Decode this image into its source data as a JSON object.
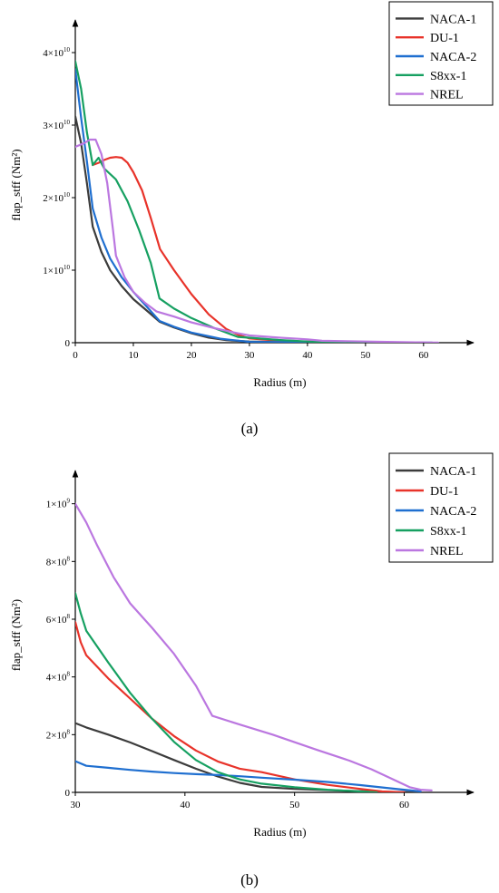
{
  "colors": {
    "NACA-1": "#3c3c3c",
    "DU-1": "#e8332a",
    "NACA-2": "#1f6fd0",
    "S8xx-1": "#16a061",
    "NREL": "#bb77e0"
  },
  "chart_data": [
    {
      "panel": "a",
      "caption": "(a)",
      "type": "line",
      "xlabel": "Radius (m)",
      "ylabel": "flap_stff (Nm²)",
      "xlim": [
        0,
        68
      ],
      "ylim": [
        0,
        43500000000.0
      ],
      "xticks": [
        0,
        10,
        20,
        30,
        40,
        50,
        60
      ],
      "yticks": [
        {
          "value": 0,
          "mant": "0",
          "exp": ""
        },
        {
          "value": 10000000000.0,
          "mant": "1×10",
          "exp": "10"
        },
        {
          "value": 20000000000.0,
          "mant": "2×10",
          "exp": "10"
        },
        {
          "value": 30000000000.0,
          "mant": "3×10",
          "exp": "10"
        },
        {
          "value": 40000000000.0,
          "mant": "4×10",
          "exp": "10"
        }
      ],
      "legend_position": "top-right",
      "series": [
        {
          "name": "NACA-1",
          "points": [
            [
              0,
              31200000000.0
            ],
            [
              1,
              27500000000.0
            ],
            [
              2,
              22000000000.0
            ],
            [
              3,
              16000000000.0
            ],
            [
              4.5,
              12500000000.0
            ],
            [
              6,
              10000000000.0
            ],
            [
              8,
              7800000000.0
            ],
            [
              10,
              6000000000.0
            ],
            [
              12.5,
              4300000000.0
            ],
            [
              14.5,
              2900000000.0
            ],
            [
              17,
              2100000000.0
            ],
            [
              20,
              1300000000.0
            ],
            [
              23,
              700000000.0
            ],
            [
              26,
              350000000.0
            ],
            [
              30,
              160000000.0
            ],
            [
              40,
              23000000.0
            ],
            [
              50,
              5000000.0
            ],
            [
              61.5,
              0
            ]
          ]
        },
        {
          "name": "DU-1",
          "points": [
            [
              3,
              24500000000.0
            ],
            [
              4,
              24800000000.0
            ],
            [
              5,
              25200000000.0
            ],
            [
              6,
              25500000000.0
            ],
            [
              7,
              25600000000.0
            ],
            [
              8,
              25500000000.0
            ],
            [
              9,
              24800000000.0
            ],
            [
              10,
              23500000000.0
            ],
            [
              11.5,
              21000000000.0
            ],
            [
              13,
              17200000000.0
            ],
            [
              14.6,
              12900000000.0
            ],
            [
              17,
              10000000000.0
            ],
            [
              20,
              6700000000.0
            ],
            [
              23,
              3900000000.0
            ],
            [
              26,
              1900000000.0
            ],
            [
              28,
              1100000000.0
            ],
            [
              30,
              590000000.0
            ],
            [
              35,
              270000000.0
            ],
            [
              40,
              150000000.0
            ],
            [
              45,
              110000000.0
            ],
            [
              50,
              50000000.0
            ],
            [
              55,
              15000000.0
            ],
            [
              60,
              0
            ]
          ]
        },
        {
          "name": "NACA-2",
          "points": [
            [
              0,
              37700000000.0
            ],
            [
              1,
              31000000000.0
            ],
            [
              2,
              25000000000.0
            ],
            [
              3,
              18500000000.0
            ],
            [
              4.5,
              14500000000.0
            ],
            [
              6,
              11600000000.0
            ],
            [
              8,
              9000000000.0
            ],
            [
              10,
              7000000000.0
            ],
            [
              12.5,
              4800000000.0
            ],
            [
              14.5,
              3000000000.0
            ],
            [
              17,
              2200000000.0
            ],
            [
              20,
              1400000000.0
            ],
            [
              25,
              550000000.0
            ],
            [
              30,
              110000000.0
            ],
            [
              40,
              65000000.0
            ],
            [
              50,
              45000000.0
            ],
            [
              61.5,
              0
            ]
          ]
        },
        {
          "name": "S8xx-1",
          "points": [
            [
              0,
              38800000000.0
            ],
            [
              1,
              35000000000.0
            ],
            [
              2,
              29000000000.0
            ],
            [
              3,
              24500000000.0
            ],
            [
              4,
              25500000000.0
            ],
            [
              5,
              24000000000.0
            ],
            [
              7,
              22500000000.0
            ],
            [
              9,
              19500000000.0
            ],
            [
              11,
              15500000000.0
            ],
            [
              13,
              11000000000.0
            ],
            [
              14.5,
              6100000000.0
            ],
            [
              17,
              4700000000.0
            ],
            [
              20,
              3400000000.0
            ],
            [
              24,
              2000000000.0
            ],
            [
              28,
              800000000.0
            ],
            [
              30,
              690000000.0
            ],
            [
              35,
              380000000.0
            ],
            [
              40,
              160000000.0
            ],
            [
              45,
              60000000.0
            ],
            [
              50,
              20000000.0
            ],
            [
              57,
              0
            ]
          ]
        },
        {
          "name": "NREL",
          "points": [
            [
              0,
              27000000000.0
            ],
            [
              1.5,
              27500000000.0
            ],
            [
              2.5,
              28000000000.0
            ],
            [
              3.5,
              28000000000.0
            ],
            [
              4.5,
              26000000000.0
            ],
            [
              5.5,
              22000000000.0
            ],
            [
              6.5,
              15500000000.0
            ],
            [
              7,
              12000000000.0
            ],
            [
              8.5,
              9000000000.0
            ],
            [
              10,
              7000000000.0
            ],
            [
              12,
              5500000000.0
            ],
            [
              14,
              4300000000.0
            ],
            [
              17,
              3600000000.0
            ],
            [
              20,
              2800000000.0
            ],
            [
              24,
              2000000000.0
            ],
            [
              28,
              1300000000.0
            ],
            [
              30,
              1000000000.0
            ],
            [
              35,
              700000000.0
            ],
            [
              40,
              460000000.0
            ],
            [
              42.5,
              265000000.0
            ],
            [
              50,
              160000000.0
            ],
            [
              55,
              105000000.0
            ],
            [
              61,
              15000000.0
            ],
            [
              62.5,
              8000000.0
            ]
          ]
        }
      ]
    },
    {
      "panel": "b",
      "caption": "(b)",
      "type": "line",
      "xlabel": "Radius (m)",
      "ylabel": "flap_stff (Nm²)",
      "xlim": [
        30,
        66
      ],
      "ylim": [
        0,
        1090000000.0
      ],
      "xticks": [
        30,
        40,
        50,
        60
      ],
      "yticks": [
        {
          "value": 0,
          "mant": "0",
          "exp": ""
        },
        {
          "value": 200000000.0,
          "mant": "2×10",
          "exp": "8"
        },
        {
          "value": 400000000.0,
          "mant": "4×10",
          "exp": "8"
        },
        {
          "value": 600000000.0,
          "mant": "6×10",
          "exp": "8"
        },
        {
          "value": 800000000.0,
          "mant": "8×10",
          "exp": "8"
        },
        {
          "value": 1000000000.0,
          "mant": "1×10",
          "exp": "9"
        }
      ],
      "legend_position": "top-right",
      "series": [
        {
          "name": "NACA-1",
          "points": [
            [
              30,
              240000000.0
            ],
            [
              31,
              225000000.0
            ],
            [
              33,
              200000000.0
            ],
            [
              35,
              173000000.0
            ],
            [
              37,
              143000000.0
            ],
            [
              39,
              112000000.0
            ],
            [
              41,
              82000000.0
            ],
            [
              43,
              55000000.0
            ],
            [
              45,
              33000000.0
            ],
            [
              47,
              19000000.0
            ],
            [
              50,
              12000000.0
            ],
            [
              55,
              5000000.0
            ],
            [
              58,
              2000000.0
            ],
            [
              61.5,
              0
            ]
          ]
        },
        {
          "name": "DU-1",
          "points": [
            [
              30,
              590000000.0
            ],
            [
              30.5,
              520000000.0
            ],
            [
              31,
              475000000.0
            ],
            [
              33,
              395000000.0
            ],
            [
              35,
              325000000.0
            ],
            [
              37,
              255000000.0
            ],
            [
              39,
              195000000.0
            ],
            [
              41,
              145000000.0
            ],
            [
              43,
              107000000.0
            ],
            [
              45,
              82000000.0
            ],
            [
              47,
              70000000.0
            ],
            [
              50,
              45000000.0
            ],
            [
              53,
              26000000.0
            ],
            [
              56,
              12000000.0
            ],
            [
              58,
              3000000.0
            ],
            [
              60,
              0
            ]
          ]
        },
        {
          "name": "NACA-2",
          "points": [
            [
              30,
              108000000.0
            ],
            [
              31,
              92000000.0
            ],
            [
              33,
              85000000.0
            ],
            [
              35,
              78000000.0
            ],
            [
              37,
              72000000.0
            ],
            [
              39,
              67000000.0
            ],
            [
              41,
              63000000.0
            ],
            [
              43,
              60000000.0
            ],
            [
              45,
              56000000.0
            ],
            [
              47,
              51000000.0
            ],
            [
              50,
              44000000.0
            ],
            [
              53,
              36000000.0
            ],
            [
              56,
              25000000.0
            ],
            [
              59,
              13000000.0
            ],
            [
              61.5,
              3000000.0
            ]
          ]
        },
        {
          "name": "S8xx-1",
          "points": [
            [
              30,
              690000000.0
            ],
            [
              30.5,
              620000000.0
            ],
            [
              31,
              560000000.0
            ],
            [
              33,
              450000000.0
            ],
            [
              35,
              345000000.0
            ],
            [
              37,
              255000000.0
            ],
            [
              39,
              175000000.0
            ],
            [
              41,
              112000000.0
            ],
            [
              43,
              70000000.0
            ],
            [
              45,
              45000000.0
            ],
            [
              47,
              30000000.0
            ],
            [
              50,
              18000000.0
            ],
            [
              53,
              9000000.0
            ],
            [
              56,
              3000000.0
            ],
            [
              57.5,
              0
            ]
          ]
        },
        {
          "name": "NREL",
          "points": [
            [
              30,
              1000000000.0
            ],
            [
              31,
              935000000.0
            ],
            [
              32,
              855000000.0
            ],
            [
              33.5,
              745000000.0
            ],
            [
              35,
              655000000.0
            ],
            [
              37,
              570000000.0
            ],
            [
              39,
              480000000.0
            ],
            [
              41,
              370000000.0
            ],
            [
              42.5,
              265000000.0
            ],
            [
              45,
              235000000.0
            ],
            [
              48,
              200000000.0
            ],
            [
              52,
              148000000.0
            ],
            [
              55,
              110000000.0
            ],
            [
              57,
              80000000.0
            ],
            [
              59,
              45000000.0
            ],
            [
              60.5,
              18000000.0
            ],
            [
              61.5,
              9000000.0
            ],
            [
              62.5,
              7000000.0
            ]
          ]
        }
      ]
    }
  ]
}
